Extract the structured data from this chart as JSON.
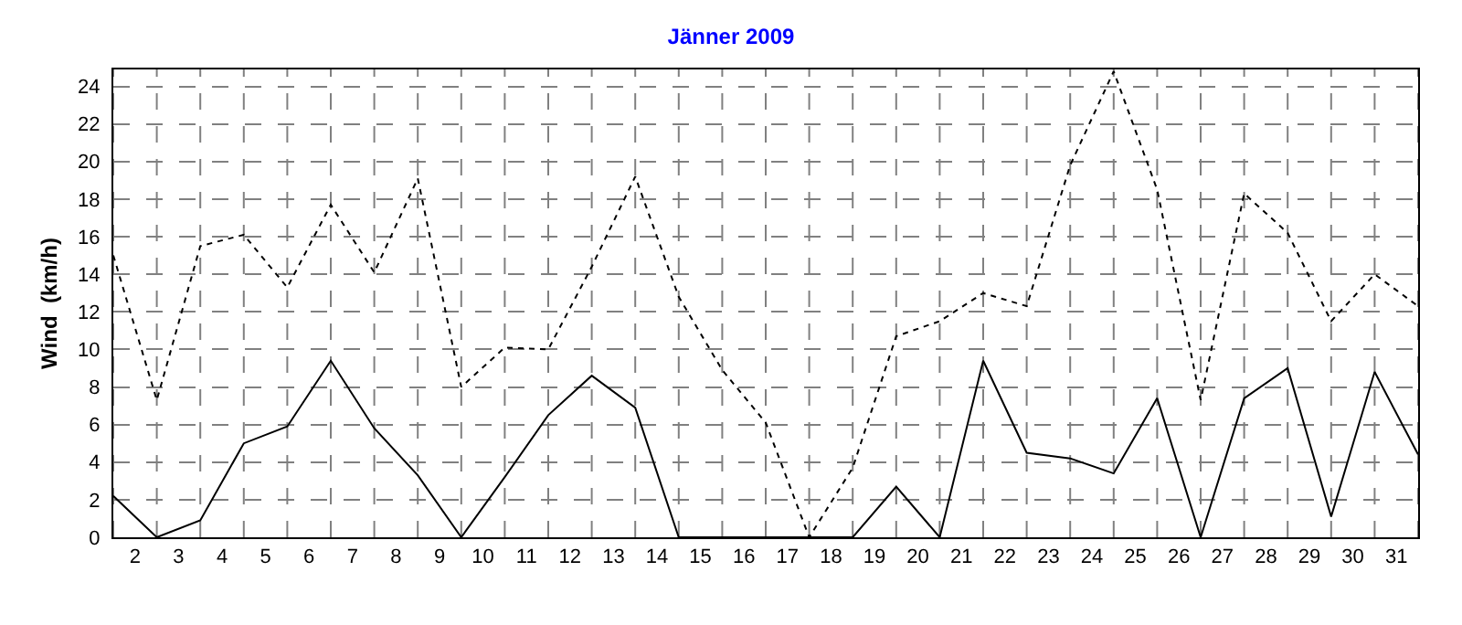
{
  "chart_data": {
    "type": "line",
    "title": "Jänner 2009",
    "ylabel": "Wind  (km/h)",
    "x": [
      1.5,
      2.5,
      3.5,
      4.5,
      5.5,
      6.5,
      7.5,
      8.5,
      9.5,
      10.5,
      11.5,
      12.5,
      13.5,
      14.5,
      15.5,
      16.5,
      17.5,
      18.5,
      19.5,
      20.5,
      21.5,
      22.5,
      23.5,
      24.5,
      25.5,
      26.5,
      27.5,
      28.5,
      29.5,
      30.5,
      31.5
    ],
    "series": [
      {
        "color": "#000000",
        "line_style": "dotted",
        "values": [
          15.0,
          7.3,
          15.5,
          16.1,
          13.3,
          17.7,
          14.1,
          19.1,
          8.0,
          10.1,
          10.0,
          14.4,
          19.2,
          12.8,
          8.9,
          6.1,
          0,
          3.7,
          10.7,
          11.5,
          13.0,
          12.3,
          19.8,
          24.8,
          18.5,
          7.3,
          18.3,
          16.2,
          11.5,
          14.0,
          12.3
        ]
      },
      {
        "color": "#000000",
        "line_style": "solid",
        "values": [
          2.2,
          0,
          0.9,
          5.0,
          5.9,
          9.4,
          5.8,
          3.3,
          0,
          3.2,
          6.5,
          8.6,
          6.9,
          0,
          0,
          0,
          0,
          0,
          2.7,
          0,
          9.4,
          4.5,
          4.2,
          3.4,
          7.4,
          0,
          7.4,
          9.0,
          1.1,
          8.8,
          4.4
        ]
      }
    ],
    "xlim": [
      1.5,
      31.5
    ],
    "xticks": [
      2,
      3,
      4,
      5,
      6,
      7,
      8,
      9,
      10,
      11,
      12,
      13,
      14,
      15,
      16,
      17,
      18,
      19,
      20,
      21,
      22,
      23,
      24,
      25,
      26,
      27,
      28,
      29,
      30,
      31
    ],
    "ylim": [
      0,
      24.9
    ],
    "yticks": [
      0,
      2,
      4,
      6,
      8,
      10,
      12,
      14,
      16,
      18,
      20,
      22,
      24
    ],
    "grid": true,
    "marker": "none"
  }
}
